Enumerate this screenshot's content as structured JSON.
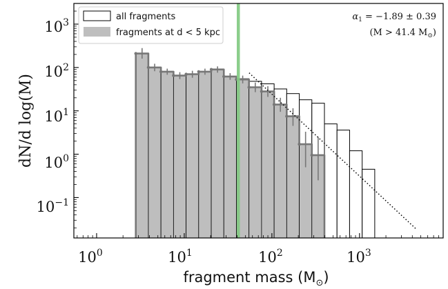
{
  "chart_data": {
    "type": "histogram",
    "xscale": "log",
    "yscale": "log",
    "xlim": [
      0.55,
      9000
    ],
    "ylim": [
      0.0117,
      3000
    ],
    "xlabel_prefix": "fragment mass (M",
    "xlabel_sub": "⊙",
    "xlabel_suffix": ")",
    "ylabel": "dN/d log(M)",
    "xticks": [
      {
        "mantissa": "10",
        "exp": "0",
        "value": 1
      },
      {
        "mantissa": "10",
        "exp": "1",
        "value": 10
      },
      {
        "mantissa": "10",
        "exp": "2",
        "value": 100
      },
      {
        "mantissa": "10",
        "exp": "3",
        "value": 1000
      }
    ],
    "yticks": [
      {
        "mantissa": "10",
        "exp": "−1",
        "value": 0.1
      },
      {
        "mantissa": "10",
        "exp": "0",
        "value": 1
      },
      {
        "mantissa": "10",
        "exp": "1",
        "value": 10
      },
      {
        "mantissa": "10",
        "exp": "2",
        "value": 100
      },
      {
        "mantissa": "10",
        "exp": "3",
        "value": 1000
      }
    ],
    "bin_log_start": 0.447,
    "bin_log_width": 0.1435,
    "series": [
      {
        "name": "all fragments",
        "style": "outline",
        "values": [
          210,
          100,
          80,
          65,
          70,
          80,
          90,
          62,
          55,
          48,
          42,
          32,
          25,
          18,
          15,
          5,
          3.6,
          1.2,
          0.45
        ]
      },
      {
        "name": "fragments at d < 5 kpc",
        "style": "filled",
        "values": [
          210,
          100,
          80,
          65,
          70,
          80,
          90,
          62,
          53,
          35,
          28,
          14,
          7.5,
          1.7,
          0.95
        ],
        "errors": [
          [
            160,
            280
          ],
          [
            82,
            122
          ],
          [
            68,
            94
          ],
          [
            54,
            78
          ],
          [
            58,
            84
          ],
          [
            68,
            94
          ],
          [
            76,
            106
          ],
          [
            52,
            74
          ],
          [
            43,
            65
          ],
          [
            27,
            45
          ],
          [
            21,
            37
          ],
          [
            9.5,
            20
          ],
          [
            4.5,
            11.5
          ],
          [
            0.5,
            3.3
          ],
          [
            0.25,
            2.5
          ]
        ]
      }
    ],
    "vline": {
      "x": 41.4,
      "color": "#7fc97f"
    },
    "fit": {
      "alpha": -1.89,
      "x_start": 55,
      "x_end": 4500,
      "y_start": 75,
      "style": "dotted"
    },
    "annotation": {
      "line1_alpha": "α",
      "line1_sub": "1",
      "line1_rest": " = −1.89 ± 0.39",
      "line2_prefix": "(M > 41.4 M",
      "line2_sub": "⊙",
      "line2_suffix": ")"
    },
    "legend_position": "upper-left",
    "colors": {
      "filled": "#bebebe",
      "filled_edge": "#777777",
      "vline": "#7fc97f"
    }
  }
}
